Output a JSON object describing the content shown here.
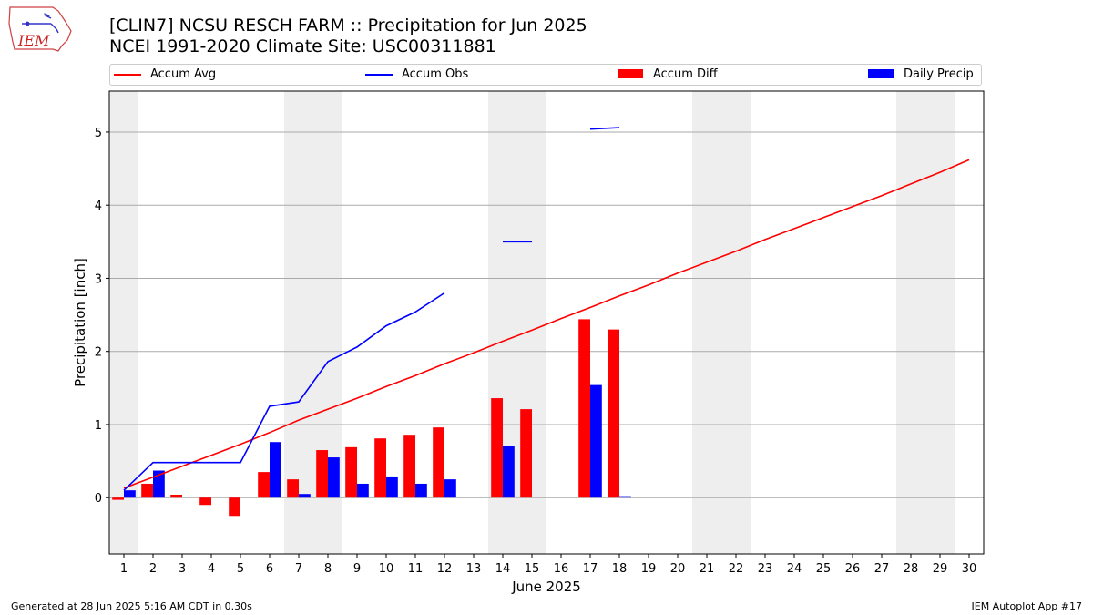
{
  "logo": {
    "text": "IEM"
  },
  "title": {
    "line1": "[CLIN7] NCSU RESCH FARM :: Precipitation for Jun 2025",
    "line2": "NCEI 1991-2020 Climate Site: USC00311881"
  },
  "legend": {
    "accum_avg": "Accum Avg",
    "accum_obs": "Accum Obs",
    "accum_diff": "Accum Diff",
    "daily_precip": "Daily Precip"
  },
  "footer": {
    "generated": "Generated at 28 Jun 2025 5:16 AM CDT in 0.30s",
    "app": "IEM Autoplot App #17"
  },
  "colors": {
    "accum_avg": "#ff0000",
    "accum_obs": "#0000ff",
    "accum_diff": "#ff0000",
    "daily_precip": "#0000ff",
    "weekend_shade": "#eeeeee",
    "grid": "#aaaaaa"
  },
  "chart_data": {
    "type": "bar",
    "xlabel": "June 2025",
    "ylabel": "Precipitation [inch]",
    "xlim": [
      0.5,
      30.5
    ],
    "ylim": [
      -0.77,
      5.56
    ],
    "x_ticks": [
      "1",
      "2",
      "3",
      "4",
      "5",
      "6",
      "7",
      "8",
      "9",
      "10",
      "11",
      "12",
      "13",
      "14",
      "15",
      "16",
      "17",
      "18",
      "19",
      "20",
      "21",
      "22",
      "23",
      "24",
      "25",
      "26",
      "27",
      "28",
      "29",
      "30"
    ],
    "y_ticks": [
      0,
      1,
      2,
      3,
      4,
      5
    ],
    "grid": "horizontal",
    "legend_position": "top",
    "shaded_days": [
      [
        1,
        1
      ],
      [
        7,
        8
      ],
      [
        14,
        15
      ],
      [
        21,
        22
      ],
      [
        28,
        29
      ]
    ],
    "series": [
      {
        "name": "Accum Avg",
        "kind": "line",
        "x": [
          1,
          2,
          3,
          4,
          5,
          6,
          7,
          8,
          9,
          10,
          11,
          12,
          13,
          14,
          15,
          16,
          17,
          18,
          19,
          20,
          21,
          22,
          23,
          24,
          25,
          26,
          27,
          28,
          29,
          30
        ],
        "values": [
          0.13,
          0.28,
          0.43,
          0.58,
          0.73,
          0.89,
          1.06,
          1.21,
          1.36,
          1.52,
          1.67,
          1.83,
          1.98,
          2.14,
          2.29,
          2.45,
          2.6,
          2.76,
          2.91,
          3.07,
          3.22,
          3.37,
          3.53,
          3.68,
          3.83,
          3.98,
          4.13,
          4.29,
          4.45,
          4.62
        ]
      },
      {
        "name": "Accum Obs",
        "kind": "line",
        "x": [
          1,
          2,
          3,
          4,
          5,
          6,
          7,
          8,
          9,
          10,
          11,
          12,
          13,
          14,
          15,
          16,
          17,
          18
        ],
        "values": [
          0.1,
          0.48,
          0.48,
          0.48,
          0.48,
          1.25,
          1.31,
          1.86,
          2.06,
          2.35,
          2.54,
          2.8,
          null,
          3.5,
          3.5,
          null,
          5.04,
          5.06
        ]
      },
      {
        "name": "Accum Diff",
        "kind": "bar",
        "x": [
          1,
          2,
          3,
          4,
          5,
          6,
          7,
          8,
          9,
          10,
          11,
          12,
          14,
          15,
          17,
          18
        ],
        "values": [
          -0.03,
          0.19,
          0.04,
          -0.1,
          -0.25,
          0.35,
          0.25,
          0.65,
          0.69,
          0.81,
          0.86,
          0.96,
          1.36,
          1.21,
          2.44,
          2.3
        ]
      },
      {
        "name": "Daily Precip",
        "kind": "bar",
        "x": [
          1,
          2,
          6,
          7,
          8,
          9,
          10,
          11,
          12,
          14,
          17,
          18
        ],
        "values": [
          0.1,
          0.37,
          0.76,
          0.05,
          0.55,
          0.19,
          0.29,
          0.19,
          0.25,
          0.71,
          1.54,
          0.02
        ]
      }
    ]
  }
}
